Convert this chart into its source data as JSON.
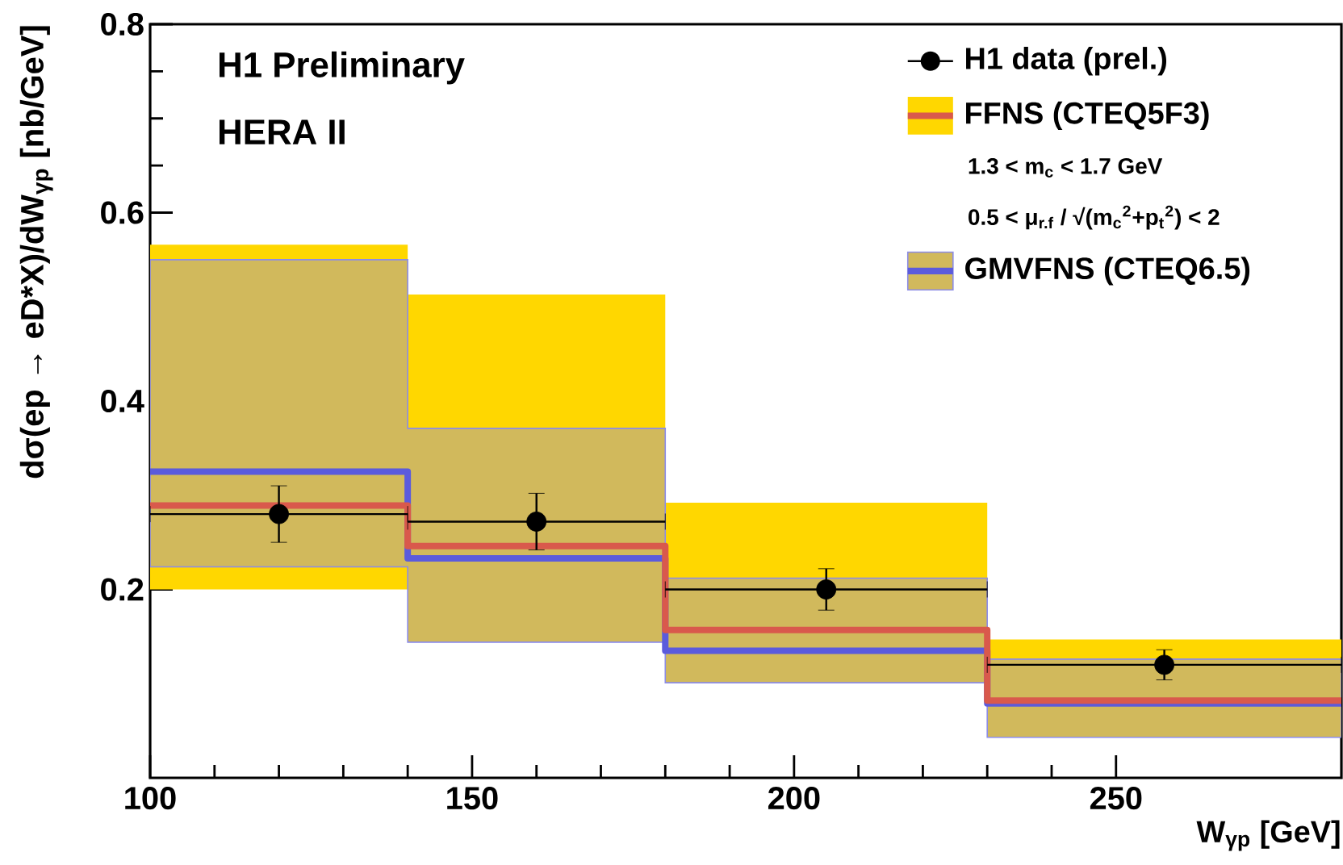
{
  "chart_data": {
    "type": "step",
    "title": "H1 Preliminary",
    "subtitle": "HERA II",
    "xlabel": "W$_{γp}$ [GeV]",
    "ylabel": "dσ(ep → eD*X)/dW$_{γp}$ [nb/GeV]",
    "xlim": [
      100,
      285
    ],
    "ylim": [
      0,
      0.8
    ],
    "xticks": [
      100,
      150,
      200,
      250
    ],
    "yticks": [
      0.2,
      0.4,
      0.6,
      0.8
    ],
    "legend": "top right",
    "annotations": [
      "1.3 < m$_{c}$ < 1.7 GeV",
      "0.5 < μ$_{r.f}$ / √(m$_{c}$$^{2}$+p$_{t}$$^{2}$) < 2"
    ],
    "series": [
      {
        "name": "H1 data (prel.)",
        "type": "scatter",
        "marker": "circle",
        "color": "#000000",
        "x": [
          120,
          160,
          205,
          257.5
        ],
        "values": [
          0.28,
          0.272,
          0.2,
          0.12
        ],
        "errors": [
          0.03,
          0.03,
          0.022,
          0.016
        ],
        "xerrors": [
          20,
          20,
          25,
          27.5
        ]
      },
      {
        "name": "FFNS (CTEQ5F3)",
        "marker": "none",
        "color": "#d9594c",
        "x": [
          100,
          140,
          180,
          230,
          285
        ],
        "values": [
          0.289,
          0.246,
          0.157,
          0.082,
          0.082
        ],
        "lower": [
          0.2,
          0.169,
          0.103,
          0.053,
          0.053
        ],
        "upper": [
          0.566,
          0.513,
          0.292,
          0.147,
          0.147
        ]
      },
      {
        "name": "GMVFNS (CTEQ6.5)",
        "marker": "none",
        "color": "#5b5bdc",
        "x": [
          100,
          140,
          180,
          230,
          285
        ],
        "values": [
          0.325,
          0.233,
          0.135,
          0.079,
          0.079
        ],
        "lower": [
          0.224,
          0.144,
          0.101,
          0.043,
          0.043
        ],
        "upper": [
          0.55,
          0.371,
          0.212,
          0.126,
          0.126
        ]
      }
    ]
  }
}
